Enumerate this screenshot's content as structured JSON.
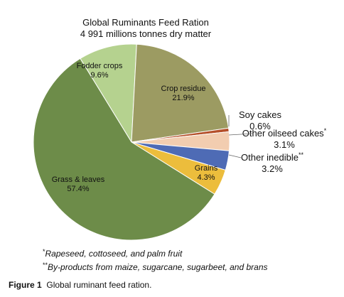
{
  "chart_data": {
    "type": "pie",
    "title": "Global Ruminants Feed Ration",
    "subtitle": "4 991 millions tonnes dry matter",
    "slices": [
      {
        "label": "Fodder crops",
        "value": 9.6,
        "value_label": "9.6%",
        "color": "#b5d28f"
      },
      {
        "label": "Crop residue",
        "value": 21.9,
        "value_label": "21.9%",
        "color": "#9c9b62"
      },
      {
        "label": "Soy cakes",
        "value": 0.6,
        "value_label": "0.6%",
        "color": "#b5502a"
      },
      {
        "label": "Other oilseed cakes",
        "marker": "*",
        "value": 3.1,
        "value_label": "3.1%",
        "color": "#f2cdb0"
      },
      {
        "label": "Other inedible",
        "marker": "**",
        "value": 3.2,
        "value_label": "3.2%",
        "color": "#4e6bb5"
      },
      {
        "label": "Grains",
        "value": 4.3,
        "value_label": "4.3%",
        "color": "#ecbd3c"
      },
      {
        "label": "Grass & leaves",
        "value": 57.4,
        "value_label": "57.4%",
        "color": "#6d8c49"
      }
    ]
  },
  "footnotes": {
    "note1_marker": "*",
    "note1": "Rapeseed, cottoseed, and palm fruit",
    "note2_marker": "**",
    "note2": "By-products from maize, sugarcane, sugarbeet, and brans"
  },
  "caption": {
    "label": "Figure 1",
    "text": "Global ruminant feed ration."
  }
}
